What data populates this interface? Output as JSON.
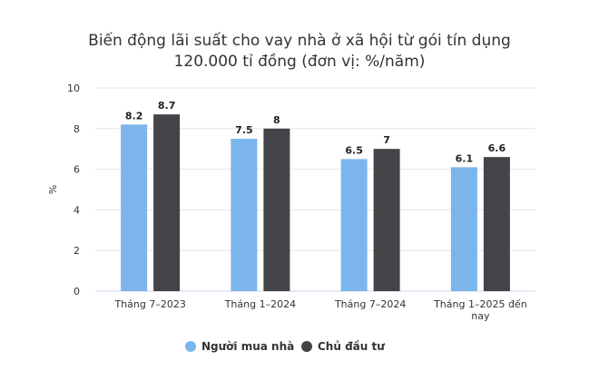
{
  "chart_data": {
    "type": "bar",
    "title_lines": [
      "Biến động lãi suất cho vay nhà ở xã hội từ gói tín dụng",
      "120.000 tỉ đồng (đơn vị: %/năm)"
    ],
    "ylabel": "%",
    "xlabel": "",
    "ylim": [
      0,
      10
    ],
    "yticks": [
      0,
      2,
      4,
      6,
      8,
      10
    ],
    "categories": [
      [
        "Tháng 7–2023"
      ],
      [
        "Tháng 1–2024"
      ],
      [
        "Tháng 7–2024"
      ],
      [
        "Tháng 1–2025 đến",
        "nay"
      ]
    ],
    "series": [
      {
        "name": "Người mua nhà",
        "color": "#7cb5ec",
        "values": [
          8.2,
          7.5,
          6.5,
          6.1
        ],
        "labels": [
          "8.2",
          "7.5",
          "6.5",
          "6.1"
        ]
      },
      {
        "name": "Chủ đầu tư",
        "color": "#434348",
        "values": [
          8.7,
          8,
          7,
          6.6
        ],
        "labels": [
          "8.7",
          "8",
          "7",
          "6.6"
        ]
      }
    ],
    "grid": true,
    "legend_position": "bottom"
  }
}
